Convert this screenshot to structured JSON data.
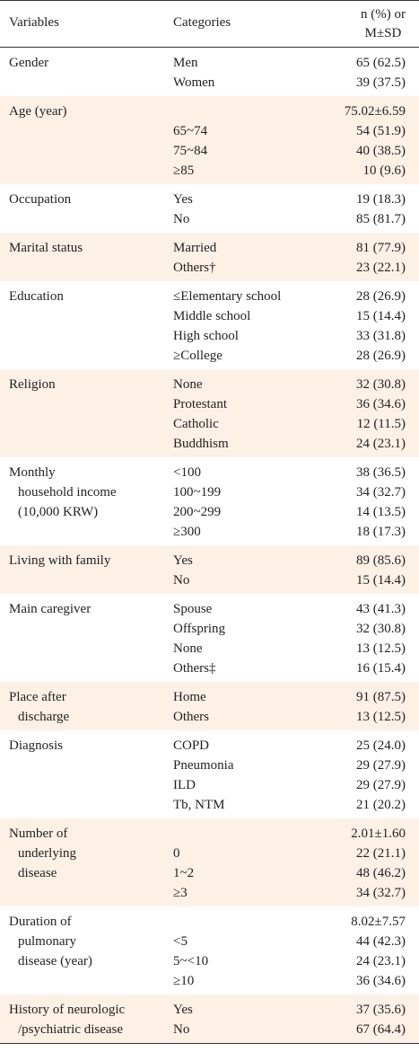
{
  "header": {
    "variables": "Variables",
    "categories": "Categories",
    "value": [
      "n (%) or",
      "M±SD"
    ]
  },
  "groups": [
    {
      "variable": [
        "Gender"
      ],
      "rows": [
        [
          "Men",
          "65 (62.5)"
        ],
        [
          "Women",
          "39 (37.5)"
        ]
      ]
    },
    {
      "variable": [
        "Age (year)"
      ],
      "rows": [
        [
          null,
          "75.02±6.59"
        ],
        [
          "65~74",
          "54 (51.9)"
        ],
        [
          "75~84",
          "40 (38.5)"
        ],
        [
          "≥85",
          "10 (9.6)"
        ]
      ]
    },
    {
      "variable": [
        "Occupation"
      ],
      "rows": [
        [
          "Yes",
          "19 (18.3)"
        ],
        [
          "No",
          "85 (81.7)"
        ]
      ]
    },
    {
      "variable": [
        "Marital status"
      ],
      "rows": [
        [
          "Married",
          "81 (77.9)"
        ],
        [
          "Others†",
          "23 (22.1)"
        ]
      ]
    },
    {
      "variable": [
        "Education"
      ],
      "rows": [
        [
          "≤Elementary school",
          "28 (26.9)"
        ],
        [
          "Middle school",
          "15 (14.4)"
        ],
        [
          "High school",
          "33 (31.8)"
        ],
        [
          "≥College",
          "28 (26.9)"
        ]
      ]
    },
    {
      "variable": [
        "Religion"
      ],
      "rows": [
        [
          "None",
          "32 (30.8)"
        ],
        [
          "Protestant",
          "36 (34.6)"
        ],
        [
          "Catholic",
          "12 (11.5)"
        ],
        [
          "Buddhism",
          "24 (23.1)"
        ]
      ]
    },
    {
      "variable": [
        "Monthly",
        "household income",
        "(10,000 KRW)"
      ],
      "rows": [
        [
          "<100",
          "38 (36.5)"
        ],
        [
          "100~199",
          "34 (32.7)"
        ],
        [
          "200~299",
          "14 (13.5)"
        ],
        [
          "≥300",
          "18 (17.3)"
        ]
      ]
    },
    {
      "variable": [
        "Living with family"
      ],
      "rows": [
        [
          "Yes",
          "89 (85.6)"
        ],
        [
          "No",
          "15 (14.4)"
        ]
      ]
    },
    {
      "variable": [
        "Main caregiver"
      ],
      "rows": [
        [
          "Spouse",
          "43 (41.3)"
        ],
        [
          "Offspring",
          "32 (30.8)"
        ],
        [
          "None",
          "13 (12.5)"
        ],
        [
          "Others‡",
          "16 (15.4)"
        ]
      ]
    },
    {
      "variable": [
        "Place after",
        "discharge"
      ],
      "rows": [
        [
          "Home",
          "91 (87.5)"
        ],
        [
          "Others",
          "13 (12.5)"
        ]
      ]
    },
    {
      "variable": [
        "Diagnosis"
      ],
      "rows": [
        [
          "COPD",
          "25 (24.0)"
        ],
        [
          "Pneumonia",
          "29 (27.9)"
        ],
        [
          "ILD",
          "29 (27.9)"
        ],
        [
          "Tb, NTM",
          "21 (20.2)"
        ]
      ]
    },
    {
      "variable": [
        "Number of",
        "underlying",
        "disease"
      ],
      "rows": [
        [
          null,
          "2.01±1.60"
        ],
        [
          "0",
          "22 (21.1)"
        ],
        [
          "1~2",
          "48 (46.2)"
        ],
        [
          "≥3",
          "34 (32.7)"
        ]
      ]
    },
    {
      "variable": [
        "Duration of",
        "pulmonary",
        "disease (year)"
      ],
      "rows": [
        [
          null,
          "8.02±7.57"
        ],
        [
          "<5",
          "44 (42.3)"
        ],
        [
          "5~<10",
          "24 (23.1)"
        ],
        [
          "≥10",
          "36 (34.6)"
        ]
      ]
    },
    {
      "variable": [
        "History of neurologic",
        "/psychiatric disease"
      ],
      "rows": [
        [
          "Yes",
          "37 (35.6)"
        ],
        [
          "No",
          "67 (64.4)"
        ]
      ]
    }
  ]
}
